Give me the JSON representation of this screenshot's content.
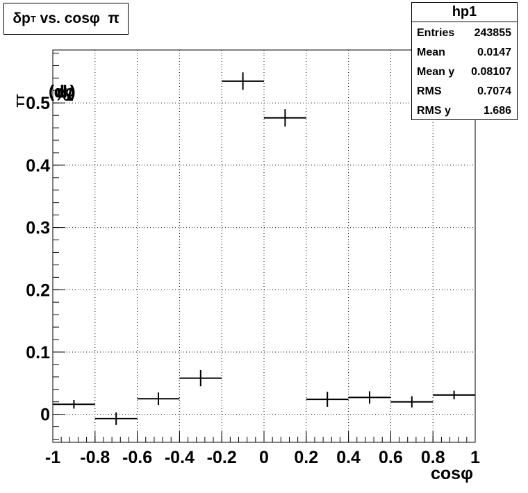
{
  "title": {
    "prefix": "δp",
    "sub": "T",
    "suffix": " vs. cosφ  π"
  },
  "stats": {
    "name": "hp1",
    "rows": [
      {
        "label": "Entries",
        "value": "243855"
      },
      {
        "label": "Mean",
        "value": "0.0147"
      },
      {
        "label": "Mean y",
        "value": "0.08107"
      },
      {
        "label": "RMS",
        "value": "0.7074"
      },
      {
        "label": "RMS y",
        "value": "1.686"
      }
    ]
  },
  "ylabel": {
    "p1": "δp",
    "s1": "T",
    "p2": "/p",
    "s2": "T",
    "p3": " (%)"
  },
  "xlabel": "cosφ",
  "chart_data": {
    "type": "scatter",
    "style": "histogram profile with error bars",
    "xlim": [
      -1,
      1
    ],
    "ylim": [
      -0.045,
      0.585
    ],
    "x_ticks": [
      "-1",
      "-0.8",
      "-0.6",
      "-0.4",
      "-0.2",
      "0",
      "0.2",
      "0.4",
      "0.6",
      "0.8",
      "1"
    ],
    "y_ticks": [
      "0",
      "0.1",
      "0.2",
      "0.3",
      "0.4",
      "0.5"
    ],
    "grid": true,
    "bin_width": 0.2,
    "x": [
      -0.9,
      -0.7,
      -0.5,
      -0.3,
      -0.1,
      0.1,
      0.3,
      0.5,
      0.7,
      0.9
    ],
    "y": [
      0.016,
      -0.007,
      0.025,
      0.058,
      0.535,
      0.476,
      0.024,
      0.027,
      0.02,
      0.031
    ],
    "yerr": [
      0.007,
      0.01,
      0.01,
      0.013,
      0.014,
      0.014,
      0.012,
      0.01,
      0.009,
      0.007
    ]
  }
}
